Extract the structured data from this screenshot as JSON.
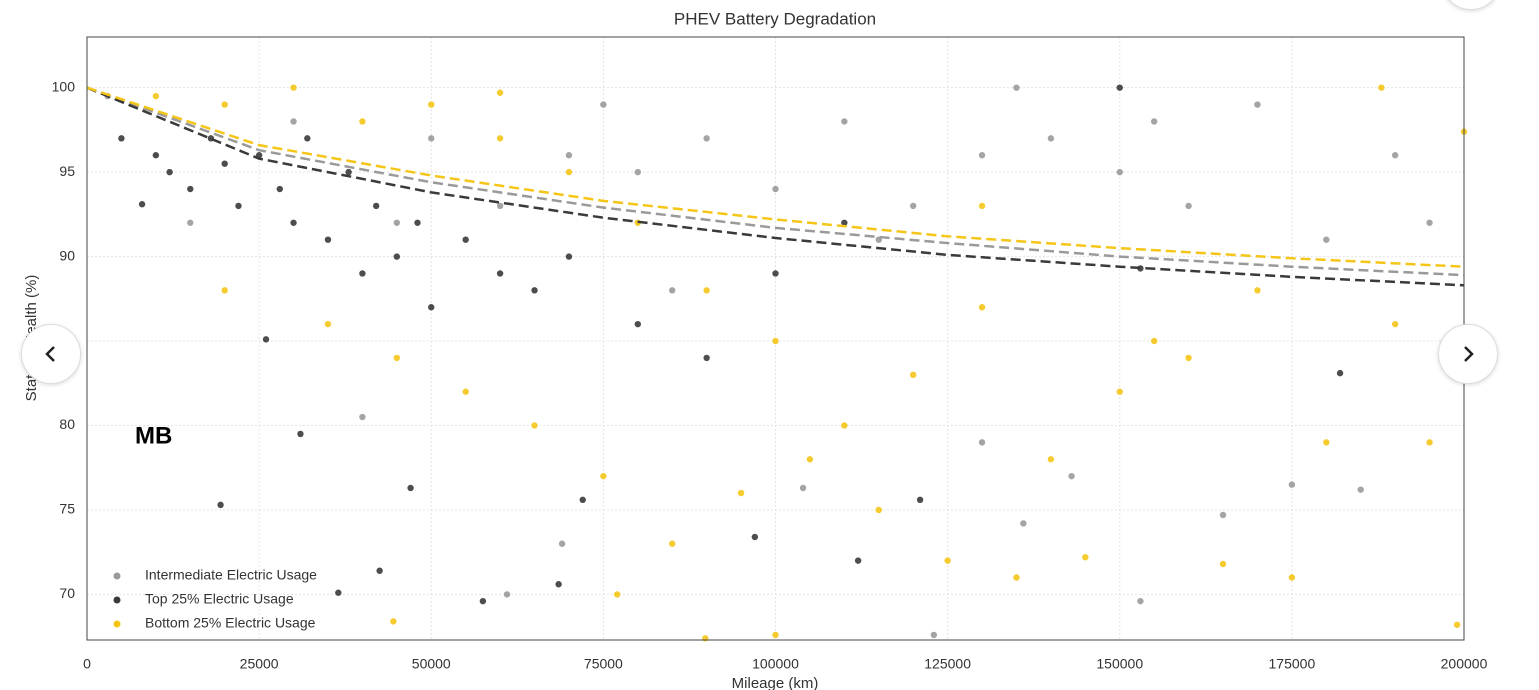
{
  "chart_data": {
    "type": "scatter",
    "title": "PHEV Battery Degradation",
    "x_label": "Mileage (km)",
    "y_label": "State of Health (%)",
    "xlim": [
      0,
      200000
    ],
    "ylim": [
      67.3,
      103
    ],
    "xticks": [
      0,
      25000,
      50000,
      75000,
      100000,
      125000,
      150000,
      175000,
      200000
    ],
    "yticks": [
      70,
      75,
      80,
      85,
      90,
      95,
      100
    ],
    "grid": true,
    "legend": "lower left",
    "watermark": "MB",
    "trend_x": [
      0,
      25000,
      50000,
      75000,
      100000,
      125000,
      150000,
      175000,
      200000
    ],
    "series": [
      {
        "name": "Intermediate Electric Usage",
        "color": "#9a9a9a",
        "x": [
          3000,
          15000,
          30000,
          50000,
          70000,
          80000,
          90000,
          100000,
          110000,
          120000,
          130000,
          140000,
          150000,
          160000,
          170000,
          180000,
          190000,
          195000,
          60000,
          85000,
          104000,
          123000,
          153000,
          61000,
          69000,
          143000,
          175000,
          165000,
          136000,
          40000,
          130000,
          185000,
          45000,
          75000,
          115000,
          135000,
          155000
        ],
        "values": [
          99.5,
          92,
          98,
          97,
          96,
          95,
          97,
          94,
          98,
          93,
          96,
          97,
          95,
          93,
          99,
          91,
          96,
          92,
          93,
          88,
          76.3,
          67.6,
          69.6,
          70,
          73,
          77,
          76.5,
          74.7,
          74.2,
          80.5,
          79,
          76.2,
          92,
          99,
          91,
          100,
          98
        ],
        "trend": [
          100,
          96.3,
          94.4,
          92.9,
          91.7,
          90.8,
          90.0,
          89.4,
          88.9
        ]
      },
      {
        "name": "Top 25% Electric Usage",
        "color": "#3a3a3a",
        "x": [
          5000,
          8000,
          10000,
          12000,
          15000,
          18000,
          20000,
          22000,
          25000,
          28000,
          30000,
          32000,
          35000,
          38000,
          40000,
          42000,
          45000,
          48000,
          50000,
          55000,
          60000,
          65000,
          70000,
          80000,
          90000,
          100000,
          110000,
          19400,
          31000,
          36500,
          42500,
          57500,
          68500,
          112000,
          121000,
          153000,
          182000,
          150000,
          26000,
          47000,
          72000,
          97000
        ],
        "values": [
          97,
          93.1,
          96,
          95,
          94,
          97,
          95.5,
          93,
          96,
          94,
          92,
          97,
          91,
          95,
          89,
          93,
          90,
          92,
          87,
          91,
          89,
          88,
          90,
          86,
          84,
          89,
          92,
          75.3,
          79.5,
          70.1,
          71.4,
          69.6,
          70.6,
          72,
          75.6,
          89.3,
          83.1,
          100,
          85.1,
          76.3,
          75.6,
          73.4
        ],
        "trend": [
          100,
          95.8,
          93.8,
          92.3,
          91.1,
          90.1,
          89.4,
          88.8,
          88.3
        ]
      },
      {
        "name": "Bottom 25% Electric Usage",
        "color": "#f5c518",
        "x": [
          10000,
          20000,
          30000,
          40000,
          50000,
          60000,
          70000,
          80000,
          90000,
          100000,
          110000,
          120000,
          130000,
          140000,
          150000,
          160000,
          170000,
          180000,
          190000,
          200000,
          20000,
          35000,
          45000,
          55000,
          65000,
          75000,
          85000,
          95000,
          105000,
          115000,
          125000,
          135000,
          145000,
          155000,
          165000,
          175000,
          195000,
          199000,
          89800,
          100000,
          77000,
          44500,
          188000,
          130000,
          60000
        ],
        "values": [
          99.5,
          99,
          100,
          98,
          99,
          97,
          95,
          92,
          88,
          85,
          80,
          83,
          87,
          78,
          82,
          84,
          88,
          79,
          86,
          97.4,
          88,
          86,
          84,
          82,
          80,
          77,
          73,
          76,
          78,
          75,
          72,
          71,
          72.2,
          85,
          71.8,
          71,
          79,
          68.2,
          67.4,
          67.6,
          70,
          68.4,
          100,
          93,
          99.7
        ],
        "trend": [
          100,
          96.6,
          94.8,
          93.3,
          92.2,
          91.2,
          90.5,
          89.9,
          89.4
        ]
      }
    ]
  }
}
